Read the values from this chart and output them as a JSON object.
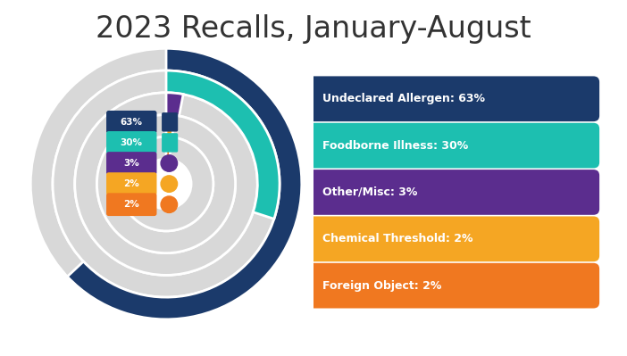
{
  "title": "2023 Recalls, January-August",
  "title_fontsize": 24,
  "title_color": "#333333",
  "background_color": "#ffffff",
  "slices": [
    63,
    30,
    3,
    2,
    2
  ],
  "labels": [
    "63%",
    "30%",
    "3%",
    "2%",
    "2%"
  ],
  "colors": [
    "#1b3a6b",
    "#1dbfb0",
    "#5b2d8e",
    "#f5a623",
    "#f07820"
  ],
  "legend_labels": [
    "Undeclared Allergen: 63%",
    "Foodborne Illness: 30%",
    "Other/Misc: 3%",
    "Chemical Threshold: 2%",
    "Foreign Object: 2%"
  ],
  "legend_colors": [
    "#1b3a6b",
    "#1dbfb0",
    "#5b2d8e",
    "#f5a623",
    "#f07820"
  ],
  "ring_gray": "#d8d8d8",
  "ring_outer_radii": [
    0.46,
    0.385,
    0.31,
    0.235,
    0.16
  ],
  "ring_inner_radii": [
    0.385,
    0.31,
    0.235,
    0.16,
    0.085
  ],
  "num_rings": 5
}
